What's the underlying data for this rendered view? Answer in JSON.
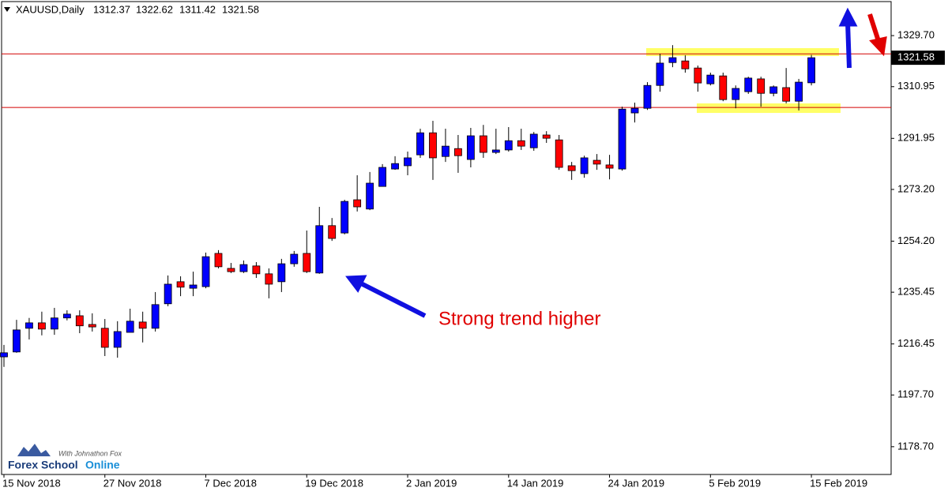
{
  "chart_data": {
    "type": "candlestick",
    "symbol": "XAUUSD,Daily",
    "categories": [
      "15 Nov 2018",
      null,
      null,
      null,
      null,
      null,
      null,
      null,
      "27 Nov 2018",
      null,
      null,
      null,
      null,
      null,
      null,
      null,
      "7 Dec 2018",
      null,
      null,
      null,
      null,
      null,
      null,
      null,
      "19 Dec 2018",
      null,
      null,
      null,
      null,
      null,
      null,
      null,
      "2 Jan 2019",
      null,
      null,
      null,
      null,
      null,
      null,
      null,
      "14 Jan 2019",
      null,
      null,
      null,
      null,
      null,
      null,
      null,
      "24 Jan 2019",
      null,
      null,
      null,
      null,
      null,
      null,
      null,
      "5 Feb 2019",
      null,
      null,
      null,
      null,
      null,
      null,
      null,
      "15 Feb 2019"
    ],
    "open": [
      1211.7,
      1213.5,
      1222.2,
      1224.2,
      1221.9,
      1226.0,
      1226.8,
      1223.6,
      1222.2,
      1215.2,
      1220.7,
      1224.5,
      1222.2,
      1231.2,
      1239.3,
      1236.9,
      1237.5,
      1249.7,
      1244.2,
      1243.0,
      1245.1,
      1242.2,
      1239.3,
      1245.9,
      1249.7,
      1242.5,
      1259.9,
      1257.2,
      1269.4,
      1266.0,
      1274.3,
      1280.7,
      1281.9,
      1285.9,
      1294.0,
      1285.3,
      1288.2,
      1284.2,
      1292.9,
      1286.8,
      1287.7,
      1291.1,
      1288.5,
      1293.2,
      1291.4,
      1281.9,
      1279.0,
      1283.9,
      1282.2,
      1280.7,
      1301.3,
      1303.0,
      1311.4,
      1319.8,
      1320.4,
      1317.8,
      1312.0,
      1314.9,
      1306.2,
      1309.1,
      1313.8,
      1308.5,
      1310.6,
      1305.6,
      1312.37
    ],
    "high": [
      1216.1,
      1225.3,
      1226.0,
      1228.3,
      1229.7,
      1228.8,
      1228.8,
      1227.7,
      1225.6,
      1224.8,
      1229.4,
      1228.3,
      1235.5,
      1241.6,
      1241.3,
      1243.0,
      1250.0,
      1250.9,
      1246.2,
      1247.1,
      1246.5,
      1244.2,
      1247.7,
      1250.6,
      1258.1,
      1266.8,
      1262.7,
      1269.4,
      1278.4,
      1279.6,
      1282.5,
      1285.4,
      1287.1,
      1295.5,
      1298.4,
      1295.5,
      1293.2,
      1295.8,
      1296.9,
      1295.5,
      1296.1,
      1295.5,
      1294.3,
      1294.6,
      1293.2,
      1283.3,
      1285.6,
      1286.2,
      1285.9,
      1303.6,
      1305.1,
      1312.6,
      1323.0,
      1326.2,
      1322.5,
      1318.7,
      1316.1,
      1316.1,
      1311.4,
      1314.6,
      1314.6,
      1311.4,
      1317.8,
      1313.8,
      1322.62
    ],
    "low": [
      1208.0,
      1213.2,
      1218.1,
      1219.6,
      1219.8,
      1225.1,
      1220.4,
      1221.0,
      1212.0,
      1211.4,
      1220.7,
      1217.0,
      1221.0,
      1230.3,
      1234.0,
      1234.0,
      1236.9,
      1244.2,
      1242.5,
      1242.5,
      1240.7,
      1233.2,
      1235.5,
      1244.8,
      1242.5,
      1242.2,
      1254.3,
      1256.7,
      1265.1,
      1265.6,
      1274.3,
      1280.4,
      1278.4,
      1284.8,
      1276.7,
      1283.3,
      1279.3,
      1281.3,
      1284.8,
      1286.2,
      1287.1,
      1287.7,
      1287.4,
      1290.3,
      1280.4,
      1276.7,
      1277.5,
      1280.4,
      1276.9,
      1280.1,
      1297.8,
      1302.4,
      1309.1,
      1318.1,
      1316.1,
      1309.1,
      1311.4,
      1305.6,
      1303.0,
      1308.3,
      1303.6,
      1307.4,
      1304.8,
      1302.2,
      1311.42
    ],
    "close": [
      1213.2,
      1221.6,
      1224.2,
      1221.9,
      1226.0,
      1227.4,
      1223.1,
      1222.7,
      1215.2,
      1221.0,
      1224.8,
      1222.2,
      1230.9,
      1238.4,
      1237.3,
      1238.1,
      1248.5,
      1244.8,
      1243.0,
      1245.6,
      1242.2,
      1238.4,
      1245.9,
      1249.4,
      1243.0,
      1259.9,
      1255.2,
      1268.8,
      1266.8,
      1275.5,
      1281.3,
      1282.7,
      1284.8,
      1294.0,
      1284.8,
      1289.1,
      1285.6,
      1292.9,
      1286.8,
      1287.7,
      1291.1,
      1289.1,
      1293.5,
      1292.0,
      1281.3,
      1280.1,
      1284.8,
      1282.5,
      1281.0,
      1302.7,
      1303.0,
      1311.4,
      1319.6,
      1321.6,
      1317.5,
      1312.3,
      1315.2,
      1306.2,
      1310.3,
      1314.1,
      1308.5,
      1310.9,
      1305.6,
      1312.6,
      1321.58
    ],
    "up_color": "#0000ff",
    "down_color": "#ff0000",
    "ylim": [
      1168.5,
      1342.2
    ],
    "yticks": [
      {
        "value": 1329.7,
        "label": "1329.70"
      },
      {
        "value": 1310.95,
        "label": "1310.95"
      },
      {
        "value": 1291.95,
        "label": "1291.95"
      },
      {
        "value": 1273.2,
        "label": "1273.20"
      },
      {
        "value": 1254.2,
        "label": "1254.20"
      },
      {
        "value": 1235.45,
        "label": "1235.45"
      },
      {
        "value": 1216.45,
        "label": "1216.45"
      },
      {
        "value": 1197.7,
        "label": "1197.70"
      },
      {
        "value": 1178.7,
        "label": "1178.70"
      }
    ],
    "hlines": [
      1323.0,
      1303.3
    ],
    "hline_color": "#d40000",
    "zones": [
      [
        1322.2,
        1325.1
      ],
      [
        1301.3,
        1304.8
      ]
    ],
    "zone_color": "#ffff66",
    "annotation": "Strong trend higher",
    "logo": {
      "name_1": "Forex School",
      "name_2": "Online",
      "tagline": "With Johnathon Fox"
    }
  }
}
